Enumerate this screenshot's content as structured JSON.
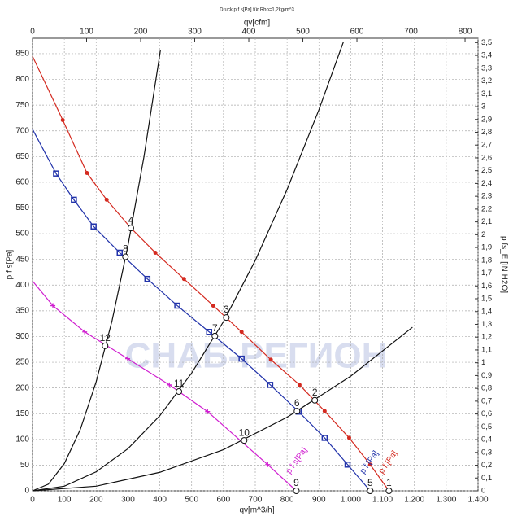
{
  "chart_data": {
    "type": "line",
    "title": "Druck p f s[Pa] für Rho=1,2kg/m^3",
    "x_label": "qv[m^3/h]",
    "x2_label": "qv[cfm]",
    "y_label": "p f s[Pa]",
    "y2_label": "p fs_E [IN H2O]",
    "watermark": "СНАБ-РЕГИОН",
    "grid": true,
    "xlim": [
      0,
      1400
    ],
    "xticks": [
      0,
      100,
      200,
      300,
      400,
      500,
      600,
      700,
      800,
      900,
      {
        "value": 1000,
        "label": "1.000"
      },
      {
        "value": 1100,
        "label": "1.100"
      },
      {
        "value": 1200,
        "label": "1.200"
      },
      {
        "value": 1300,
        "label": "1.300"
      },
      {
        "value": 1400,
        "label": "1.400"
      }
    ],
    "x2lim": [
      0,
      824
    ],
    "x2ticks": [
      0,
      100,
      200,
      300,
      400,
      500,
      600,
      700,
      800
    ],
    "ylim": [
      0,
      880
    ],
    "yticks": [
      0,
      50,
      100,
      150,
      200,
      250,
      300,
      350,
      400,
      450,
      500,
      550,
      600,
      650,
      700,
      750,
      800,
      850
    ],
    "y2lim": [
      0,
      3.534
    ],
    "y2ticks": [
      0,
      {
        "value": 0.1,
        "label": "0,1"
      },
      {
        "value": 0.2,
        "label": "0,2"
      },
      {
        "value": 0.3,
        "label": "0,3"
      },
      {
        "value": 0.4,
        "label": "0,4"
      },
      {
        "value": 0.5,
        "label": "0,5"
      },
      {
        "value": 0.6,
        "label": "0,6"
      },
      {
        "value": 0.7,
        "label": "0,7"
      },
      {
        "value": 0.8,
        "label": "0,8"
      },
      {
        "value": 0.9,
        "label": "0,9"
      },
      1,
      {
        "value": 1.1,
        "label": "1,1"
      },
      {
        "value": 1.2,
        "label": "1,2"
      },
      {
        "value": 1.3,
        "label": "1,3"
      },
      {
        "value": 1.4,
        "label": "1,4"
      },
      {
        "value": 1.5,
        "label": "1,5"
      },
      {
        "value": 1.6,
        "label": "1,6"
      },
      {
        "value": 1.7,
        "label": "1,7"
      },
      {
        "value": 1.8,
        "label": "1,8"
      },
      {
        "value": 1.9,
        "label": "1,9"
      },
      2,
      {
        "value": 2.1,
        "label": "2,1"
      },
      {
        "value": 2.2,
        "label": "2,2"
      },
      {
        "value": 2.3,
        "label": "2,3"
      },
      {
        "value": 2.4,
        "label": "2,4"
      },
      {
        "value": 2.5,
        "label": "2,5"
      },
      {
        "value": 2.6,
        "label": "2,6"
      },
      {
        "value": 2.7,
        "label": "2,7"
      },
      {
        "value": 2.8,
        "label": "2,8"
      },
      {
        "value": 2.9,
        "label": "2,9"
      },
      3,
      {
        "value": 3.1,
        "label": "3,1"
      },
      {
        "value": 3.2,
        "label": "3,2"
      },
      {
        "value": 3.3,
        "label": "3,3"
      },
      {
        "value": 3.4,
        "label": "3,4"
      },
      {
        "value": 3.5,
        "label": "3,5"
      }
    ],
    "series": [
      {
        "name": "p f [Pa]",
        "color": "#d42a20",
        "marker": "circle",
        "x": [
          0,
          95,
          171,
          233,
          309,
          386,
          476,
          568,
          657,
          749,
          839,
          918,
          995,
          1061,
          1120
        ],
        "values": [
          845,
          721,
          618,
          566,
          511,
          463,
          412,
          360,
          309,
          255,
          206,
          155,
          103,
          51,
          0
        ]
      },
      {
        "name": "p f [Pa]",
        "color": "#2233aa",
        "marker": "square",
        "x": [
          0,
          74,
          130,
          192,
          274,
          361,
          455,
          555,
          657,
          747,
          836,
          918,
          990,
          1061
        ],
        "values": [
          703,
          617,
          566,
          514,
          463,
          412,
          360,
          309,
          257,
          206,
          154,
          103,
          51,
          0
        ]
      },
      {
        "name": "p f s[Pa]",
        "color": "#d020d0",
        "marker": "plus",
        "x": [
          0,
          64,
          164,
          299,
          430,
          550,
          739,
          829
        ],
        "values": [
          408,
          360,
          309,
          257,
          206,
          154,
          51,
          0
        ]
      },
      {
        "color": "#111111",
        "x": [
          0,
          50,
          100,
          150,
          200,
          250,
          300,
          350,
          402
        ],
        "values": [
          0,
          13,
          53,
          119,
          212,
          331,
          477,
          649,
          857
        ]
      },
      {
        "color": "#111111",
        "x": [
          0,
          100,
          200,
          300,
          400,
          500,
          600,
          700,
          800,
          900,
          977
        ],
        "values": [
          0,
          9,
          37,
          82,
          146,
          229,
          329,
          448,
          586,
          741,
          873
        ]
      },
      {
        "color": "#111111",
        "x": [
          0,
          200,
          400,
          600,
          800,
          1000,
          1194
        ],
        "values": [
          0,
          9,
          36,
          80,
          143,
          223,
          318
        ]
      }
    ],
    "points": [
      {
        "label": "1",
        "x": 1120,
        "y": 0
      },
      {
        "label": "2",
        "x": 887,
        "y": 176
      },
      {
        "label": "3",
        "x": 609,
        "y": 337
      },
      {
        "label": "4",
        "x": 309,
        "y": 511
      },
      {
        "label": "5",
        "x": 1061,
        "y": 0
      },
      {
        "label": "6",
        "x": 831,
        "y": 155
      },
      {
        "label": "7",
        "x": 573,
        "y": 301
      },
      {
        "label": "8",
        "x": 292,
        "y": 455
      },
      {
        "label": "9",
        "x": 829,
        "y": 0
      },
      {
        "label": "10",
        "x": 665,
        "y": 98
      },
      {
        "label": "11",
        "x": 460,
        "y": 193
      },
      {
        "label": "12",
        "x": 228,
        "y": 282
      }
    ]
  }
}
